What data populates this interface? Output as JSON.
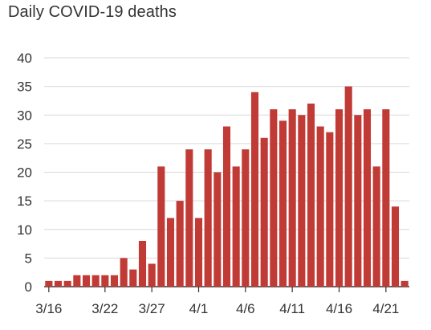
{
  "chart_data": {
    "type": "bar",
    "title": "Daily COVID-19 deaths",
    "xlabel": "",
    "ylabel": "",
    "ylim": [
      0,
      40
    ],
    "yticks": [
      0,
      5,
      10,
      15,
      20,
      25,
      30,
      35,
      40
    ],
    "grid": true,
    "legend": "none",
    "bar_color": "#c13b36",
    "categories": [
      "3/16",
      "3/17",
      "3/18",
      "3/19",
      "3/20",
      "3/21",
      "3/22",
      "3/23",
      "3/24",
      "3/25",
      "3/26",
      "3/27",
      "3/28",
      "3/29",
      "3/30",
      "3/31",
      "4/1",
      "4/2",
      "4/3",
      "4/4",
      "4/5",
      "4/6",
      "4/7",
      "4/8",
      "4/9",
      "4/10",
      "4/11",
      "4/12",
      "4/13",
      "4/14",
      "4/15",
      "4/16",
      "4/17",
      "4/18",
      "4/19",
      "4/20",
      "4/21",
      "4/22",
      "4/23"
    ],
    "values": [
      1,
      1,
      1,
      2,
      2,
      2,
      2,
      2,
      5,
      3,
      8,
      4,
      21,
      12,
      15,
      24,
      12,
      24,
      20,
      28,
      21,
      24,
      34,
      26,
      31,
      29,
      31,
      30,
      32,
      28,
      27,
      31,
      35,
      30,
      31,
      21,
      31,
      14,
      1
    ],
    "xtick_labels": [
      "3/16",
      "3/22",
      "3/27",
      "4/1",
      "4/6",
      "4/11",
      "4/16",
      "4/21"
    ]
  }
}
